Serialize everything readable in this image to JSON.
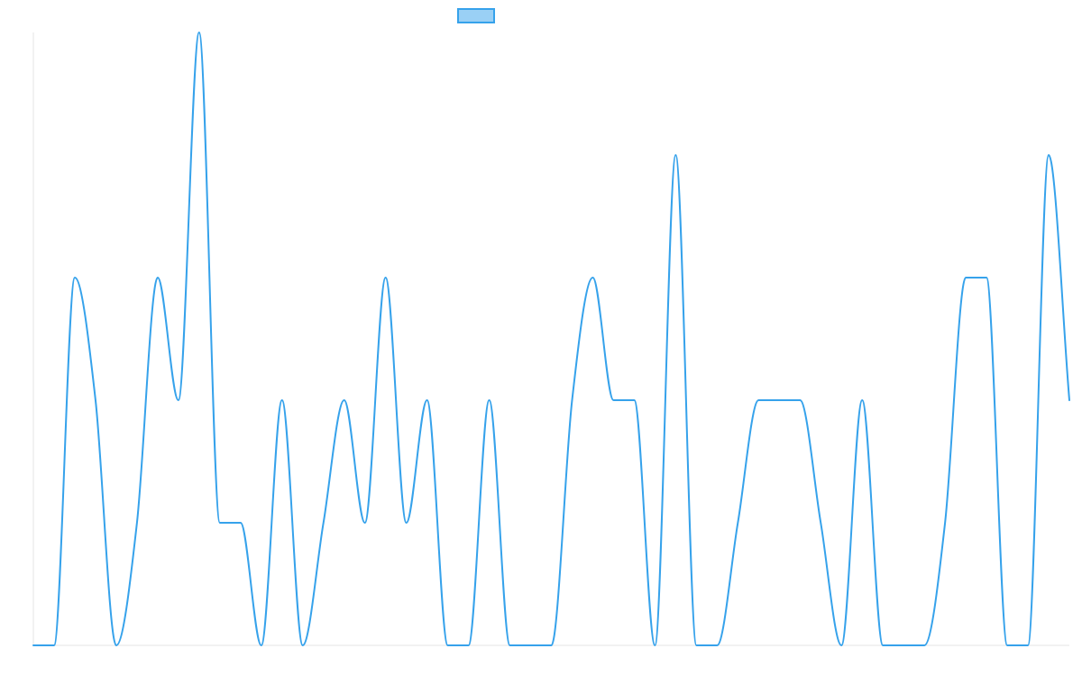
{
  "chart_data": {
    "type": "line",
    "title": "",
    "xlabel": "",
    "ylabel": "",
    "grid": false,
    "legend_position": "top",
    "ylim": [
      0,
      5
    ],
    "series": [
      {
        "values": [
          0,
          0,
          3,
          2,
          0,
          1,
          3,
          2,
          5,
          1,
          1,
          0,
          2,
          0,
          1,
          2,
          1,
          3,
          1,
          2,
          0,
          0,
          2,
          0,
          0,
          0,
          2,
          3,
          2,
          2,
          0,
          4,
          0,
          0,
          1,
          2,
          2,
          2,
          1,
          0,
          2,
          0,
          0,
          0,
          1,
          3,
          3,
          0,
          0,
          4,
          2
        ],
        "line_color": "#36a2eb",
        "fill_color": "#9ad0f5"
      }
    ]
  }
}
